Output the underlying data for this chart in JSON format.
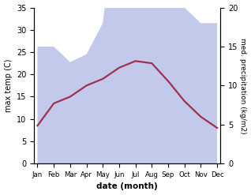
{
  "months": [
    "Jan",
    "Feb",
    "Mar",
    "Apr",
    "May",
    "Jun",
    "Jul",
    "Aug",
    "Sep",
    "Oct",
    "Nov",
    "Dec"
  ],
  "temp_C": [
    8.5,
    13.5,
    15.0,
    17.5,
    19.0,
    21.5,
    23.0,
    22.5,
    18.5,
    14.0,
    10.5,
    8.0
  ],
  "precip_mm": [
    15.0,
    15.0,
    13.0,
    14.0,
    18.0,
    35.0,
    29.0,
    35.0,
    25.0,
    20.0,
    18.0,
    18.0
  ],
  "temp_color": "#a03050",
  "precip_fill_color": "#b8c0e8",
  "ylim_left": [
    0,
    35
  ],
  "ylim_right": [
    0,
    20
  ],
  "precip_scale": 1.75,
  "xlabel": "date (month)",
  "ylabel_left": "max temp (C)",
  "ylabel_right": "med. precipitation (kg/m2)",
  "bg_color": "#ffffff",
  "line_width": 1.6,
  "left_ticks": [
    0,
    5,
    10,
    15,
    20,
    25,
    30,
    35
  ],
  "right_ticks": [
    0,
    5,
    10,
    15,
    20
  ]
}
